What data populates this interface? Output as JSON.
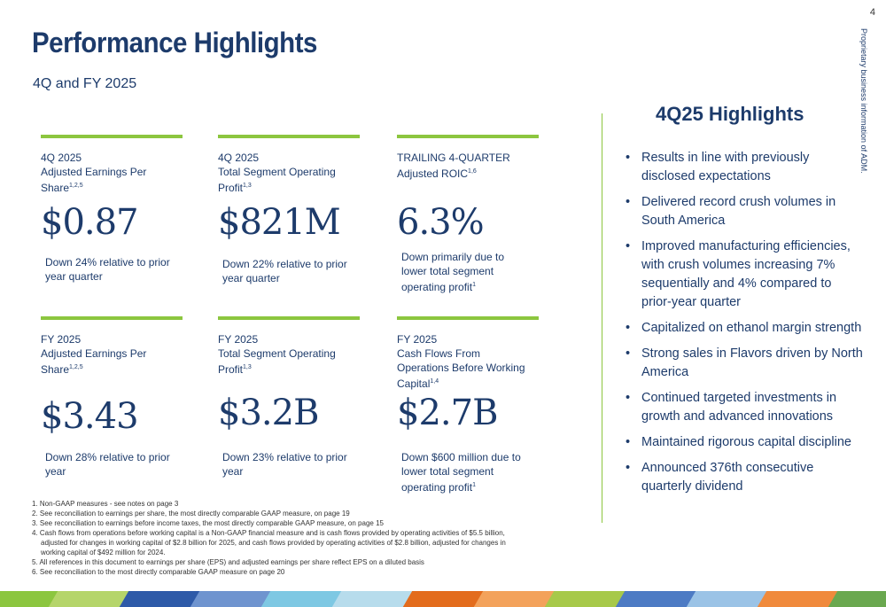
{
  "page": {
    "title": "Performance Highlights",
    "subtitle": "4Q and FY 2025",
    "page_number": "4",
    "side_text": "Proprietary business information of ADM."
  },
  "metrics": [
    {
      "label_line1": "4Q 2025",
      "label_line2": "Adjusted Earnings Per Share",
      "sup": "1,2,5",
      "value": "$0.87",
      "desc": "Down 24% relative to prior year quarter",
      "desc_sup": ""
    },
    {
      "label_line1": "4Q 2025",
      "label_line2": "Total Segment Operating Profit",
      "sup": "1,3",
      "value": "$821M",
      "desc": "Down 22% relative to prior year quarter",
      "desc_sup": ""
    },
    {
      "label_line1": "TRAILING 4-QUARTER",
      "label_line2": "Adjusted ROIC",
      "sup": "1,6",
      "value": "6.3%",
      "desc": "Down primarily due to lower total segment operating profit",
      "desc_sup": "1"
    },
    {
      "label_line1": "FY 2025",
      "label_line2": "Adjusted Earnings Per Share",
      "sup": "1,2,5",
      "value": "$3.43",
      "desc": "Down 28% relative to prior year",
      "desc_sup": ""
    },
    {
      "label_line1": "FY 2025",
      "label_line2": "Total Segment Operating Profit",
      "sup": "1,3",
      "value": "$3.2B",
      "desc": "Down 23% relative to prior year",
      "desc_sup": ""
    },
    {
      "label_line1": "FY 2025",
      "label_line2": "Cash Flows From Operations Before Working Capital",
      "sup": "1,4",
      "value": "$2.7B",
      "desc": "Down $600 million due to lower total segment operating profit",
      "desc_sup": "1"
    }
  ],
  "highlights": {
    "title": "4Q25 Highlights",
    "bullet": "•",
    "items": [
      "Results in line with previously disclosed expectations",
      "Delivered record crush volumes in South America",
      "Improved manufacturing efficiencies, with crush volumes increasing 7% sequentially and 4% compared to prior-year quarter",
      "Capitalized on ethanol margin strength",
      "Strong sales in Flavors driven by North America",
      "Continued targeted investments in growth and advanced innovations",
      "Maintained rigorous capital discipline",
      "Announced 376th consecutive quarterly dividend"
    ]
  },
  "footnotes": [
    "1. Non-GAAP measures - see notes on page 3",
    "2. See reconciliation to earnings per share, the most directly comparable GAAP measure, on page 19",
    "3. See reconciliation to earnings before income taxes, the most directly comparable GAAP measure, on page 15",
    "4. Cash flows from operations before working capital is a Non-GAAP financial measure and is cash flows provided by operating activities of $5.5 billion, adjusted for changes in working capital of $2.8 billion for 2025, and cash flows provided by operating activities of $2.8 billion, adjusted for changes in working capital of $492 million for 2024.",
    "5. All references in this document to earnings per share (EPS) and adjusted earnings per share reflect EPS on a diluted basis",
    "6. See reconciliation to the most directly comparable GAAP measure on page 20"
  ],
  "colors": {
    "navy": "#1d3b6b",
    "green": "#8cc63f",
    "stripe": [
      "#8cc63f",
      "#b5d56a",
      "#2e5aa8",
      "#6f94cf",
      "#7ec8e3",
      "#b7dcec",
      "#e36c1d",
      "#f3a25b",
      "#a7c94a",
      "#4d7bc4",
      "#9bc3e6",
      "#f08a3c",
      "#6aa84f"
    ]
  }
}
